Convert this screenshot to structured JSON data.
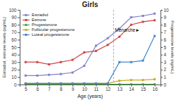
{
  "chart_data": {
    "type": "line",
    "title": "Girls",
    "x_label": "Age (years)",
    "y_label": "Estradiol, estrone levels (pg/mL)",
    "y2_label": "Progesterone levels (ng/mL)",
    "x": [
      5,
      6,
      7,
      8,
      9,
      10,
      11,
      12,
      13,
      14,
      15,
      16
    ],
    "xlim": [
      4.5,
      16.5
    ],
    "xticks": [
      5,
      6,
      7,
      8,
      9,
      10,
      11,
      12,
      13,
      14,
      15,
      16
    ],
    "ylim": [
      0,
      100
    ],
    "yticks": [
      0,
      10,
      20,
      30,
      40,
      50,
      60,
      70,
      80,
      90,
      100
    ],
    "y2lim": [
      0,
      10
    ],
    "y2ticks": [
      0,
      1,
      2,
      3,
      4,
      5,
      6,
      7,
      8,
      9,
      10
    ],
    "series": [
      {
        "name": "Estradiol",
        "color": "#8080cc",
        "marker": "square",
        "values": [
          12,
          12,
          13,
          14,
          16,
          25,
          52,
          62,
          75,
          90,
          92,
          95
        ]
      },
      {
        "name": "Estrone",
        "color": "#cc4444",
        "marker": "square",
        "values": [
          30,
          30,
          27,
          30,
          33,
          43,
          45,
          53,
          64,
          80,
          84,
          86
        ]
      },
      {
        "name": "Progesterone",
        "color": "#44aa44",
        "marker": "square",
        "values": [
          0.3,
          0.3,
          0.3,
          0.3,
          0.3,
          0.3,
          0.3,
          0.3,
          0.3,
          0.3,
          0.3,
          0.3
        ]
      },
      {
        "name": "Follicular progesterone",
        "color": "#ccaa22",
        "marker": "square",
        "axis": "y2",
        "values": [
          0.15,
          0.15,
          0.15,
          0.15,
          0.15,
          0.15,
          0.15,
          0.15,
          0.5,
          0.6,
          0.6,
          0.7
        ]
      },
      {
        "name": "Luteal progesterone",
        "color": "#4488cc",
        "marker": "square",
        "axis": "y2",
        "values": [
          0.15,
          0.15,
          0.15,
          0.15,
          0.15,
          0.15,
          0.15,
          0.15,
          3.0,
          3.0,
          3.2,
          6.5
        ]
      }
    ],
    "annotations": [
      {
        "text": "Menarche►",
        "x": 12.5,
        "y": 72
      }
    ],
    "legend": "upper left",
    "grid": false
  }
}
